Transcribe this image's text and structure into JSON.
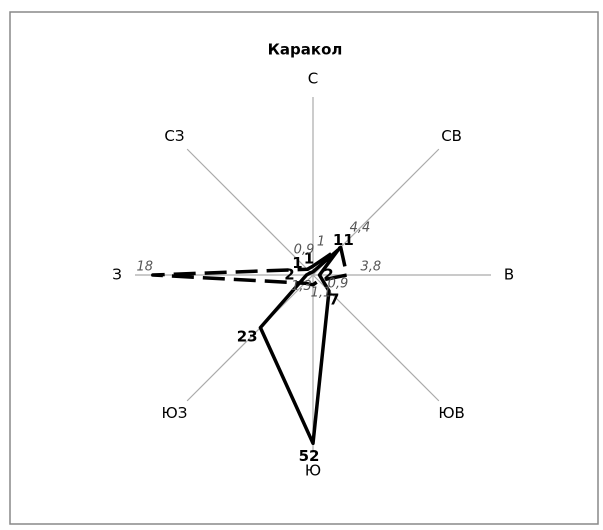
{
  "chart_data": {
    "type": "radar",
    "title": "Каракол",
    "categories": [
      "С",
      "СВ",
      "В",
      "ЮВ",
      "Ю",
      "ЮЗ",
      "З",
      "СЗ"
    ],
    "ylim": [
      0,
      55
    ],
    "y2lim": [
      0,
      20
    ],
    "series": [
      {
        "color": "#000000",
        "values": [
          1,
          11,
          2,
          7,
          52,
          23,
          2,
          1
        ]
      },
      {
        "color": "#000000",
        "axis": "y2",
        "dashed": true,
        "values": [
          1,
          4.4,
          3.8,
          0.9,
          1.1,
          1.3,
          18,
          0.9
        ],
        "value_labels": [
          "1",
          "4,4",
          "3,8",
          "0,9",
          "1,1",
          "1,3",
          "18",
          "0,9"
        ]
      }
    ]
  }
}
